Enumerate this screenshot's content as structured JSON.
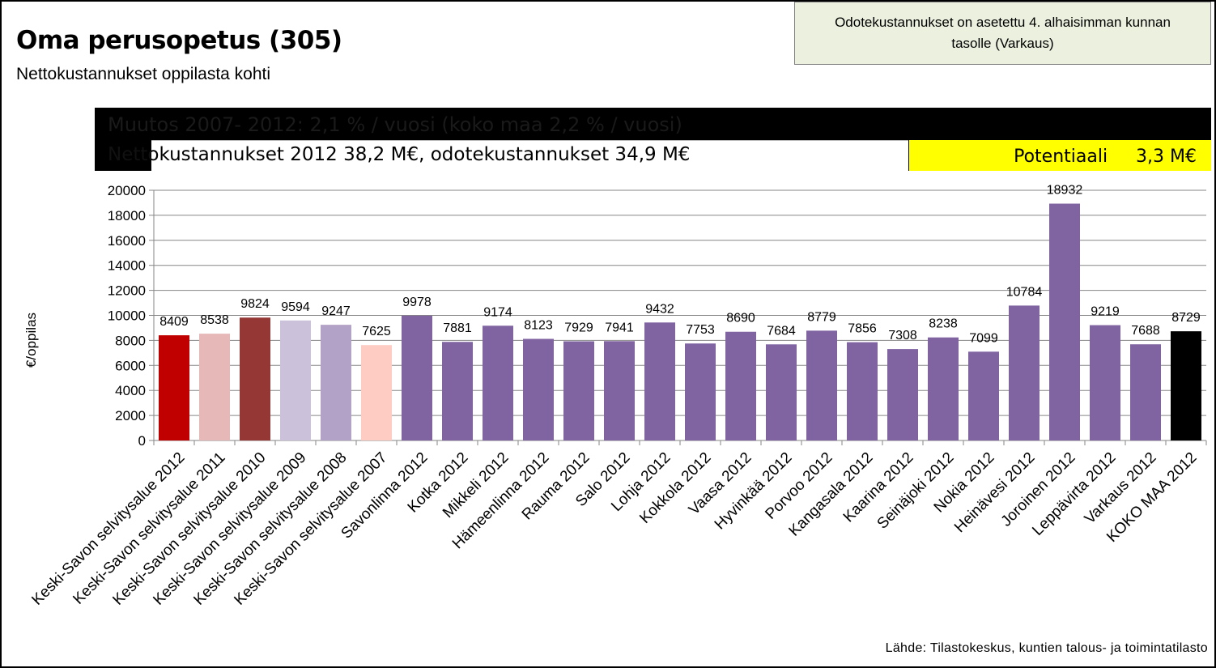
{
  "header": {
    "title": "Oma perusopetus (305)",
    "subtitle": "Nettokustannukset  oppilasta kohti"
  },
  "note": {
    "line1": "Odotekustannukset on asetettu 4. alhaisimman kunnan",
    "line2": "tasolle (Varkaus)"
  },
  "summary": {
    "change": "Muutos 2007- 2012: 2,1 % / vuosi (koko maa 2,2 % / vuosi)",
    "costs": "Nettokustannukset 2012 38,2 M€, odotekustannukset 34,9 M€",
    "potential": "Potentiaali     3,3 M€"
  },
  "source": "Lähde: Tilastokeskus, kuntien talous- ja toimintatilasto",
  "colors": {
    "accent_dark_red": "#c00000",
    "purple": "#8064a2",
    "black": "#000000",
    "yellow": "#ffff00"
  },
  "chart_data": {
    "type": "bar",
    "ylabel": "€/oppilas",
    "ylim": [
      0,
      20000
    ],
    "yticks": [
      0,
      2000,
      4000,
      6000,
      8000,
      10000,
      12000,
      14000,
      16000,
      18000,
      20000
    ],
    "grid": true,
    "categories": [
      "Keski-Savon selvitysalue 2012",
      "Keski-Savon selvitysalue 2011",
      "Keski-Savon selvitysalue 2010",
      "Keski-Savon selvitysalue 2009",
      "Keski-Savon selvitysalue 2008",
      "Keski-Savon selvitysalue 2007",
      "Savonlinna 2012",
      "Kotka 2012",
      "Mikkeli 2012",
      "Hämeenlinna 2012",
      "Rauma 2012",
      "Salo 2012",
      "Lohja 2012",
      "Kokkola 2012",
      "Vaasa 2012",
      "Hyvinkää 2012",
      "Porvoo 2012",
      "Kangasala 2012",
      "Kaarina 2012",
      "Seinäjoki 2012",
      "Nokia 2012",
      "Heinävesi 2012",
      "Joroinen 2012",
      "Leppävirta 2012",
      "Varkaus 2012",
      "KOKO MAA 2012"
    ],
    "values": [
      8409,
      8538,
      9824,
      9594,
      9247,
      7625,
      9978,
      7881,
      9174,
      8123,
      7929,
      7941,
      9432,
      7753,
      8690,
      7684,
      8779,
      7856,
      7308,
      8238,
      7099,
      10784,
      18932,
      9219,
      7688,
      8729
    ],
    "bar_colors": [
      "#c00000",
      "#e6b9b8",
      "#953735",
      "#ccc1da",
      "#b3a2c7",
      "#ffccc3",
      "#8064a2",
      "#8064a2",
      "#8064a2",
      "#8064a2",
      "#8064a2",
      "#8064a2",
      "#8064a2",
      "#8064a2",
      "#8064a2",
      "#8064a2",
      "#8064a2",
      "#8064a2",
      "#8064a2",
      "#8064a2",
      "#8064a2",
      "#8064a2",
      "#8064a2",
      "#8064a2",
      "#8064a2",
      "#000000"
    ]
  }
}
